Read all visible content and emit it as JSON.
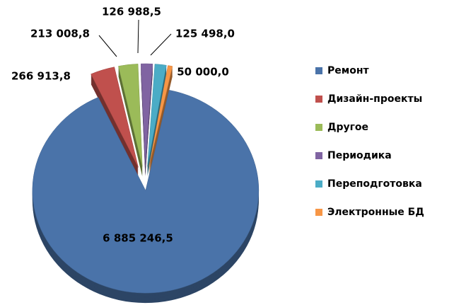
{
  "chart_data": {
    "type": "pie",
    "categories": [
      "Ремонт",
      "Дизайн-проекты",
      "Другое",
      "Периодика",
      "Переподготовка",
      "Электронные БД"
    ],
    "values": [
      6885246.5,
      266913.8,
      213008.8,
      126988.5,
      125498.0,
      50000.0
    ],
    "value_labels": [
      "6 885 246,5",
      "266 913,8",
      "213 008,8",
      "126 988,5",
      "125 498,0",
      "50 000,0"
    ],
    "colors": [
      "#4a73a9",
      "#c0504d",
      "#9bbb59",
      "#8064a2",
      "#4bacc6",
      "#f79646"
    ],
    "legend": "right"
  }
}
